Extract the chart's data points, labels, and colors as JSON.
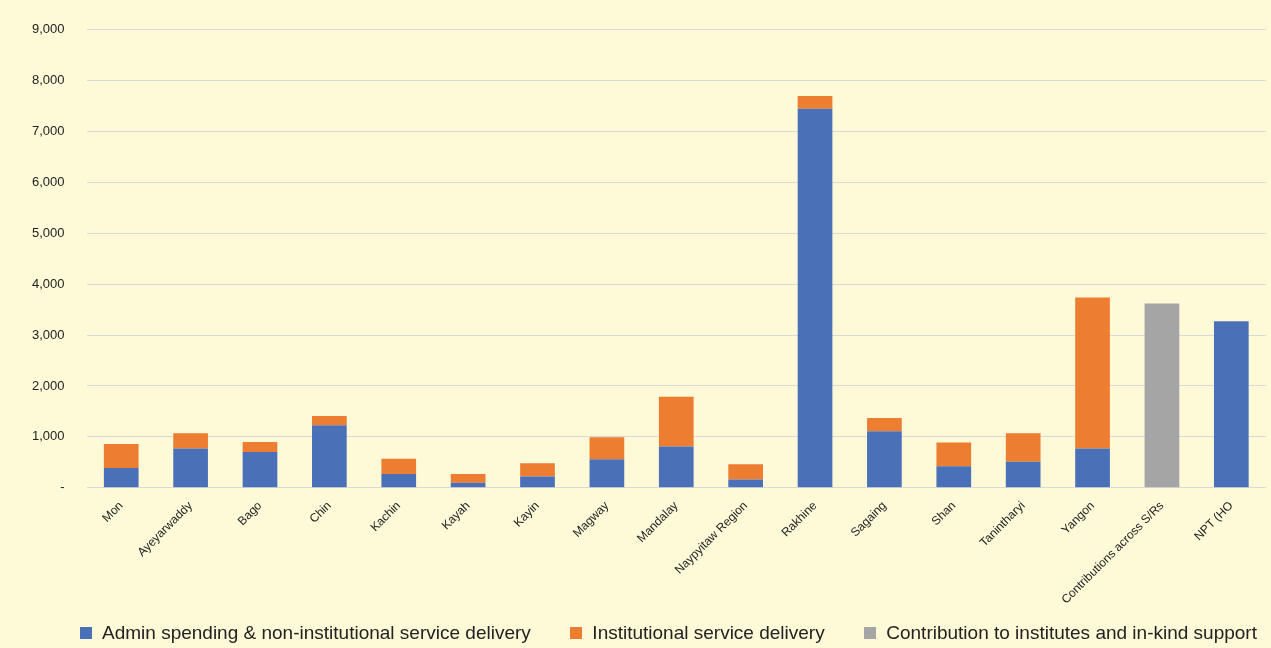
{
  "chart_data": {
    "type": "bar",
    "stacked": true,
    "grid": "y",
    "legend": "bottom",
    "categories": [
      "Mon",
      "Ayeyarwaddy",
      "Bago",
      "Chin",
      "Kachin",
      "Kayah",
      "Kayin",
      "Magway",
      "Mandalay",
      "Naypyitaw Region",
      "Rakhine",
      "Sagaing",
      "Shan",
      "Tanintharyi",
      "Yangon",
      "Contributions across S/Rs",
      "NPT (HO"
    ],
    "series": [
      {
        "name": "Admin spending & non-institutional service delivery",
        "color": "#4a70b8",
        "values": [
          390,
          770,
          700,
          1230,
          270,
          100,
          220,
          560,
          810,
          160,
          7450,
          1110,
          420,
          510,
          770,
          null,
          3270
        ]
      },
      {
        "name": "Institutional service delivery",
        "color": "#ed7d31",
        "values": [
          470,
          300,
          200,
          180,
          300,
          170,
          260,
          430,
          980,
          300,
          250,
          260,
          470,
          560,
          2970,
          null,
          null
        ]
      },
      {
        "name": "Contribution to institutes and in-kind support",
        "color": "#a5a5a5",
        "values": [
          null,
          null,
          null,
          null,
          null,
          null,
          null,
          null,
          null,
          null,
          null,
          null,
          null,
          null,
          null,
          3620,
          null
        ]
      }
    ],
    "ylim": [
      0,
      9000
    ],
    "yticks": [
      {
        "value": 0,
        "label": "-"
      },
      {
        "value": 1000,
        "label": "1,000"
      },
      {
        "value": 2000,
        "label": "2,000"
      },
      {
        "value": 3000,
        "label": "3,000"
      },
      {
        "value": 4000,
        "label": "4,000"
      },
      {
        "value": 5000,
        "label": "5,000"
      },
      {
        "value": 6000,
        "label": "6,000"
      },
      {
        "value": 7000,
        "label": "7,000"
      },
      {
        "value": 8000,
        "label": "8,000"
      },
      {
        "value": 9000,
        "label": "9,000"
      }
    ]
  }
}
